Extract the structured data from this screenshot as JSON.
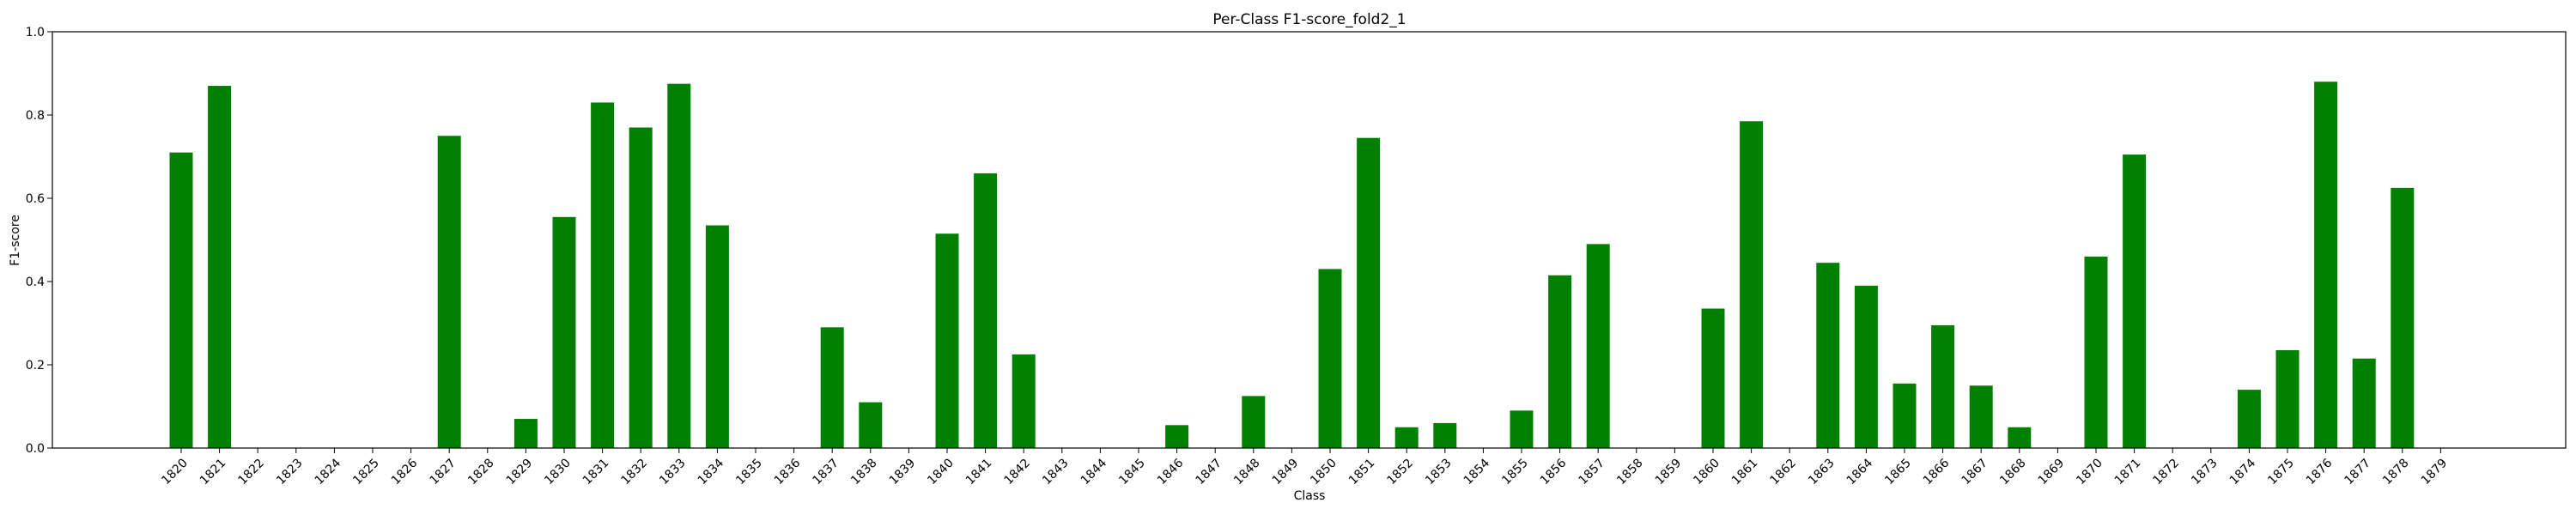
{
  "chart_data": {
    "type": "bar",
    "title": "Per-Class F1-score_fold2_1",
    "xlabel": "Class",
    "ylabel": "F1-score",
    "ylim": [
      0,
      1.0
    ],
    "yticks": [
      "0.0",
      "0.2",
      "0.4",
      "0.6",
      "0.8",
      "1.0"
    ],
    "bar_color": "#008000",
    "grid": false,
    "categories": [
      "1820",
      "1821",
      "1822",
      "1823",
      "1824",
      "1825",
      "1826",
      "1827",
      "1828",
      "1829",
      "1830",
      "1831",
      "1832",
      "1833",
      "1834",
      "1835",
      "1836",
      "1837",
      "1838",
      "1839",
      "1840",
      "1841",
      "1842",
      "1843",
      "1844",
      "1845",
      "1846",
      "1847",
      "1848",
      "1849",
      "1850",
      "1851",
      "1852",
      "1853",
      "1854",
      "1855",
      "1856",
      "1857",
      "1858",
      "1859",
      "1860",
      "1861",
      "1862",
      "1863",
      "1864",
      "1865",
      "1866",
      "1867",
      "1868",
      "1869",
      "1870",
      "1871",
      "1872",
      "1873",
      "1874",
      "1875",
      "1876",
      "1877",
      "1878",
      "1879"
    ],
    "values": [
      0.71,
      0.87,
      0,
      0,
      0,
      0,
      0,
      0.75,
      0,
      0.07,
      0.555,
      0.83,
      0.77,
      0.875,
      0.535,
      0,
      0,
      0.29,
      0.11,
      0,
      0.515,
      0.66,
      0.225,
      0,
      0,
      0,
      0.055,
      0,
      0.125,
      0,
      0.43,
      0.745,
      0.05,
      0.06,
      0,
      0.09,
      0.415,
      0.49,
      0,
      0,
      0.335,
      0.785,
      0,
      0.445,
      0.39,
      0.155,
      0.295,
      0.15,
      0.05,
      0,
      0.46,
      0.705,
      0,
      0,
      0.14,
      0.235,
      0.88,
      0.215,
      0.625,
      0
    ]
  }
}
